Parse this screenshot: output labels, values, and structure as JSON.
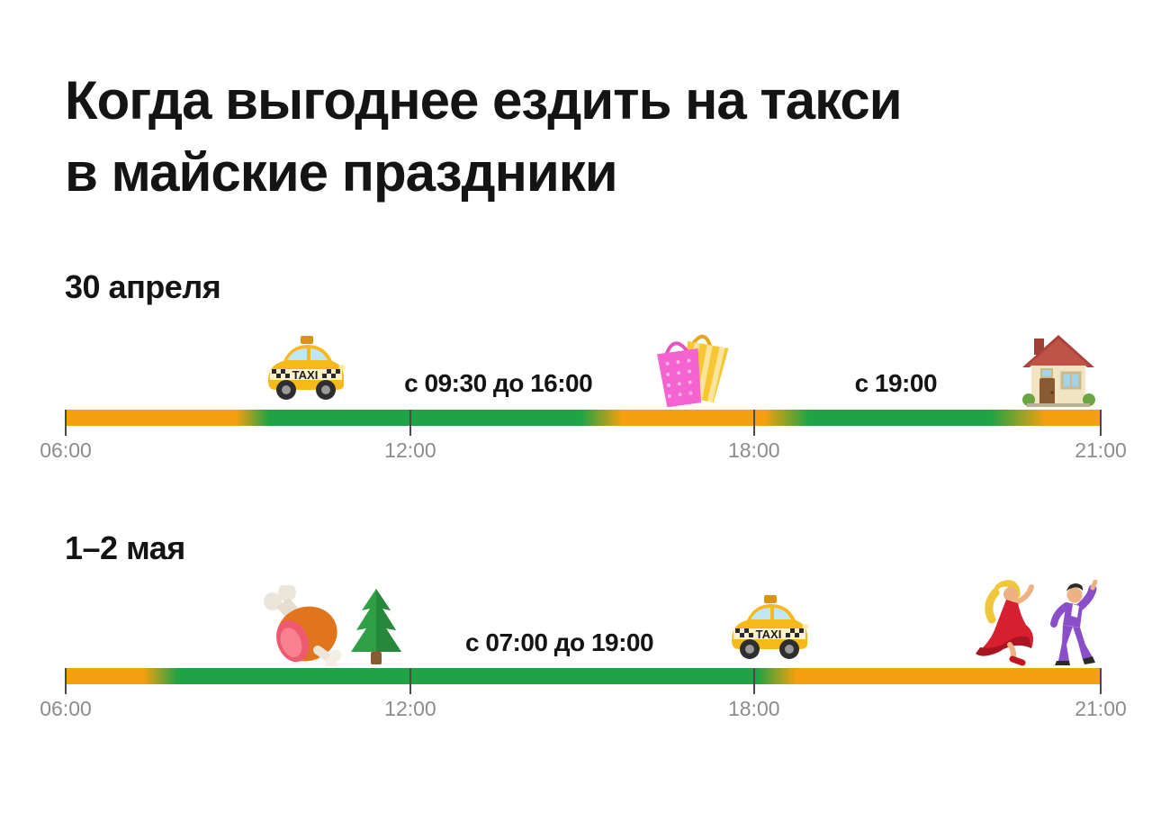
{
  "title": {
    "line1": "Когда выгоднее ездить на такси",
    "line2": "в майские праздники"
  },
  "colors": {
    "green": "#1fa344",
    "orange": "#f5a00f",
    "tick": "#4a4a4a",
    "tick_label": "#8c8c8c",
    "text": "#141414"
  },
  "chart_data": {
    "type": "timeline-bars",
    "title": "Когда выгоднее ездить на такси в майские праздники",
    "axis": {
      "start": "06:00",
      "end": "21:00",
      "tick_labels": [
        "06:00",
        "12:00",
        "18:00",
        "21:00"
      ],
      "tick_positions_pct": [
        0,
        33.3,
        66.5,
        100
      ]
    },
    "timelines": [
      {
        "date": "30 апреля",
        "green_period_labels": [
          "с 09:30 до 16:00",
          "с 19:00"
        ],
        "annotations": [
          {
            "type": "icon",
            "icon": "taxi",
            "pos_pct": 23.2
          },
          {
            "type": "text",
            "text": "с 09:30 до 16:00",
            "pos_pct": 41.8
          },
          {
            "type": "icon",
            "icon": "shopping-bags",
            "pos_pct": 60.8
          },
          {
            "type": "text",
            "text": "с 19:00",
            "pos_pct": 80.2
          },
          {
            "type": "icon",
            "icon": "house",
            "pos_pct": 95.9
          }
        ],
        "gradient_stops": [
          {
            "color": "orange",
            "pct": 0
          },
          {
            "color": "orange",
            "pct": 16.5
          },
          {
            "color": "green",
            "pct": 19.6
          },
          {
            "color": "green",
            "pct": 49.8
          },
          {
            "color": "orange",
            "pct": 53.8
          },
          {
            "color": "orange",
            "pct": 67.5
          },
          {
            "color": "green",
            "pct": 71.8
          },
          {
            "color": "green",
            "pct": 89.4
          },
          {
            "color": "orange",
            "pct": 94.7
          },
          {
            "color": "orange",
            "pct": 100
          }
        ]
      },
      {
        "date": "1–2 мая",
        "green_period_labels": [
          "с 07:00 до 19:00"
        ],
        "annotations": [
          {
            "type": "icon",
            "icon": "meat-on-bone",
            "pos_pct": 22.8
          },
          {
            "type": "icon",
            "icon": "evergreen-tree",
            "pos_pct": 30.0
          },
          {
            "type": "text",
            "text": "с 07:00 до 19:00",
            "pos_pct": 47.7
          },
          {
            "type": "icon",
            "icon": "taxi",
            "pos_pct": 68.0
          },
          {
            "type": "icon",
            "icon": "dancer-woman",
            "pos_pct": 90.8
          },
          {
            "type": "icon",
            "icon": "dancer-man",
            "pos_pct": 97.3
          }
        ],
        "gradient_stops": [
          {
            "color": "orange",
            "pct": 0
          },
          {
            "color": "orange",
            "pct": 7.5
          },
          {
            "color": "green",
            "pct": 10.8
          },
          {
            "color": "green",
            "pct": 66.8
          },
          {
            "color": "orange",
            "pct": 70.6
          },
          {
            "color": "orange",
            "pct": 100
          }
        ]
      }
    ]
  }
}
